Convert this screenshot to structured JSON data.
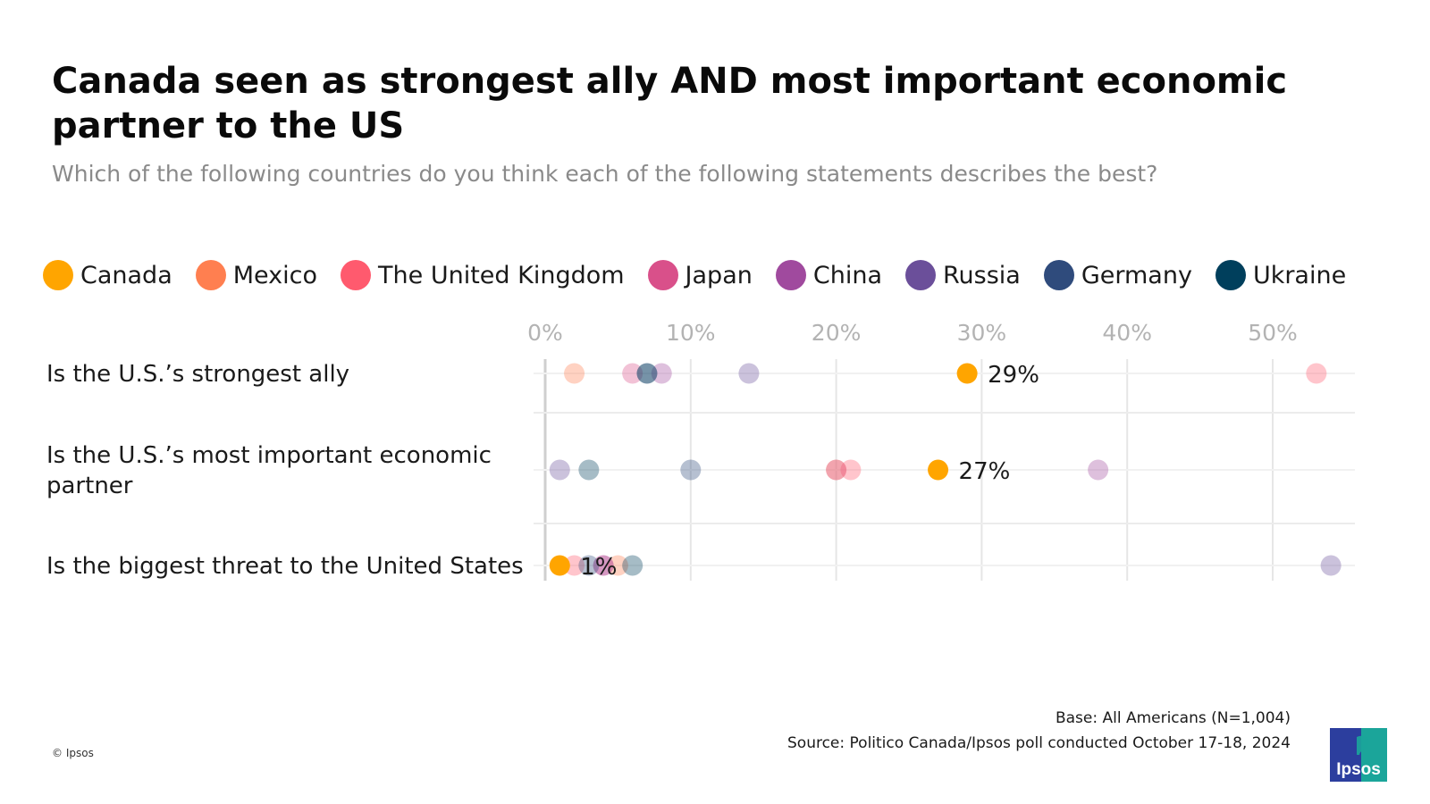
{
  "header": {
    "title": "Canada seen as strongest ally AND most important economic partner to the US",
    "subtitle": "Which of the following countries do you think each of the following statements describes the best?"
  },
  "legend": [
    {
      "name": "Canada",
      "color": "#FFA500"
    },
    {
      "name": "Mexico",
      "color": "#FF7F50"
    },
    {
      "name": "The United Kingdom",
      "color": "#FF5A6E"
    },
    {
      "name": "Japan",
      "color": "#D9508A"
    },
    {
      "name": "China",
      "color": "#A04A9E"
    },
    {
      "name": "Russia",
      "color": "#6B4F9A"
    },
    {
      "name": "Germany",
      "color": "#2F4B7C"
    },
    {
      "name": "Ukraine",
      "color": "#003F5C"
    }
  ],
  "chart_data": {
    "type": "scatter",
    "title": "Canada seen as strongest ally AND most important economic partner to the US",
    "xlabel": "",
    "ylabel": "",
    "xlim": [
      0,
      55
    ],
    "x_ticks": [
      "0%",
      "10%",
      "20%",
      "30%",
      "40%",
      "50%"
    ],
    "tick_values": [
      0,
      10,
      20,
      30,
      40,
      50
    ],
    "grid": true,
    "legend_position": "top",
    "categories": [
      "Is the U.S.’s strongest ally",
      "Is the U.S.’s most important economic partner",
      "Is the biggest threat to the United States"
    ],
    "highlight_series": "Canada",
    "series": [
      {
        "name": "Canada",
        "color": "#FFA500",
        "values": [
          29,
          27,
          1
        ],
        "labels": [
          "29%",
          "27%",
          "1%"
        ]
      },
      {
        "name": "Mexico",
        "color": "#FF7F50",
        "values": [
          2,
          20,
          5
        ]
      },
      {
        "name": "The United Kingdom",
        "color": "#FF5A6E",
        "values": [
          53,
          21,
          2
        ]
      },
      {
        "name": "Japan",
        "color": "#D9508A",
        "values": [
          6,
          20,
          4
        ]
      },
      {
        "name": "China",
        "color": "#A04A9E",
        "values": [
          8,
          38,
          4
        ]
      },
      {
        "name": "Russia",
        "color": "#6B4F9A",
        "values": [
          14,
          1,
          54
        ]
      },
      {
        "name": "Germany",
        "color": "#2F4B7C",
        "values": [
          7,
          10,
          3
        ]
      },
      {
        "name": "Ukraine",
        "color": "#003F5C",
        "values": [
          7,
          3,
          6
        ]
      }
    ]
  },
  "footer": {
    "base": "Base: All Americans (N=1,004)",
    "source": "Source: Politico Canada/Ipsos poll conducted October 17-18, 2024",
    "copyright": "© Ipsos",
    "logo_text": "Ipsos"
  }
}
